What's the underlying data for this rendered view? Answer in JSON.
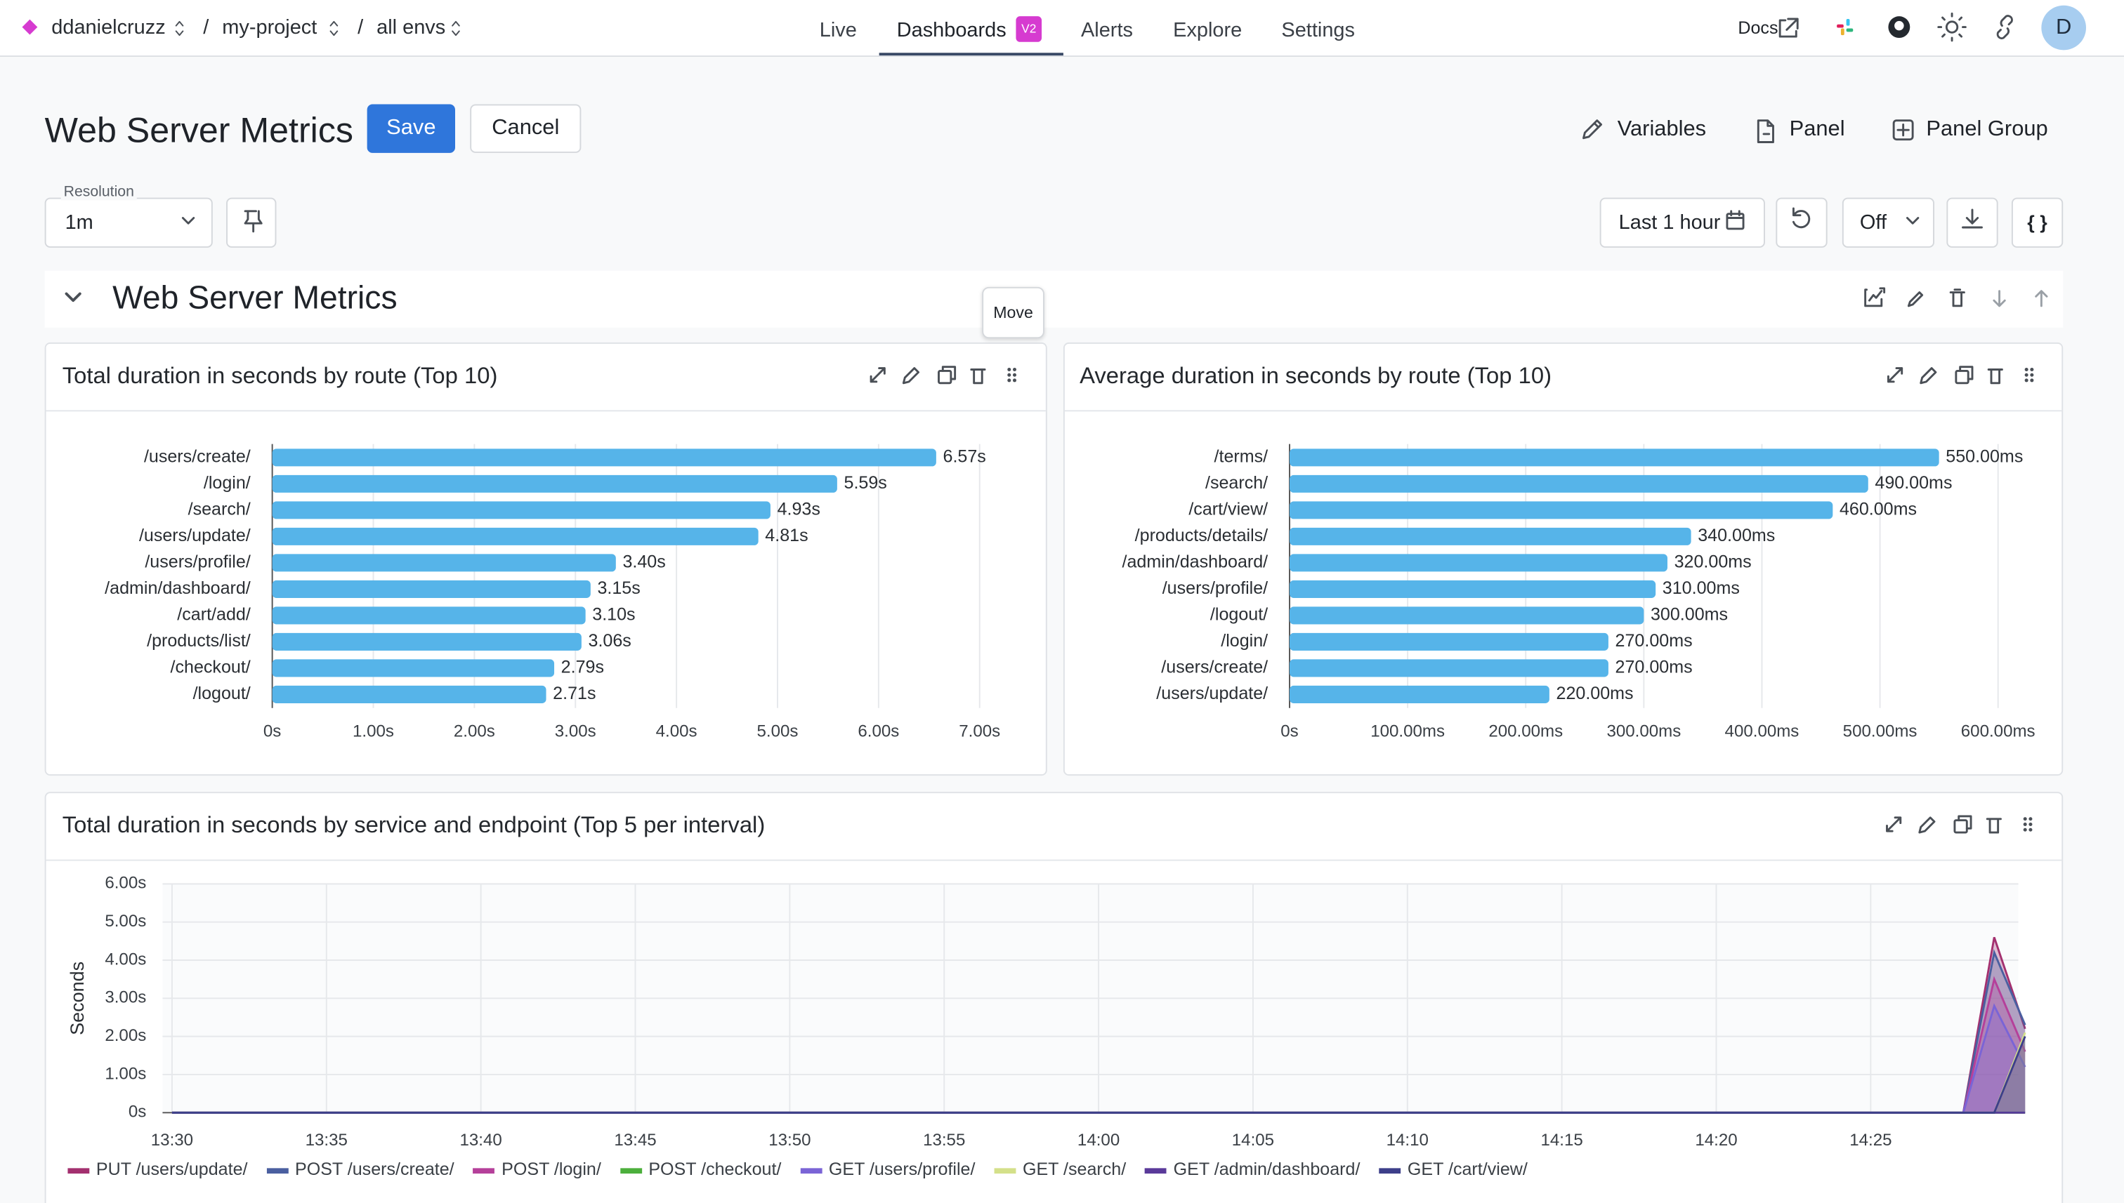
{
  "nav": {
    "org": "ddanielcruzz",
    "project": "my-project",
    "env": "all envs",
    "separator": "/",
    "tabs": [
      "Live",
      "Dashboards",
      "Alerts",
      "Explore",
      "Settings"
    ],
    "badge": "V2",
    "docs": "Docs",
    "avatar": "D"
  },
  "toolbar": {
    "title": "Web Server Metrics",
    "save": "Save",
    "cancel": "Cancel",
    "variables": "Variables",
    "panel": "Panel",
    "panel_group": "Panel Group",
    "resolution_label": "Resolution",
    "resolution": "1m",
    "time_range": "Last 1 hour",
    "refresh": "Off",
    "json": "{ }"
  },
  "group": {
    "title": "Web Server Metrics",
    "tooltip": "Move"
  },
  "panels": [
    {
      "title": "Total duration in seconds by route (Top 10)",
      "chart": {
        "type": "hbar",
        "color": "#56b4e9",
        "categories": [
          "/users/create/",
          "/login/",
          "/search/",
          "/users/update/",
          "/users/profile/",
          "/admin/dashboard/",
          "/cart/add/",
          "/products/list/",
          "/checkout/",
          "/logout/"
        ],
        "values": [
          6.57,
          5.59,
          4.93,
          4.81,
          3.4,
          3.15,
          3.1,
          3.06,
          2.79,
          2.71
        ],
        "value_labels": [
          "6.57s",
          "5.59s",
          "4.93s",
          "4.81s",
          "3.40s",
          "3.15s",
          "3.10s",
          "3.06s",
          "2.79s",
          "2.71s"
        ],
        "xlim": [
          0,
          7.5
        ],
        "xticks": [
          {
            "value": 0,
            "label": "0s"
          },
          {
            "value": 1,
            "label": "1.00s"
          },
          {
            "value": 2,
            "label": "2.00s"
          },
          {
            "value": 3,
            "label": "3.00s"
          },
          {
            "value": 4,
            "label": "4.00s"
          },
          {
            "value": 5,
            "label": "5.00s"
          },
          {
            "value": 6,
            "label": "6.00s"
          },
          {
            "value": 7,
            "label": "7.00s"
          }
        ],
        "grid": true
      }
    },
    {
      "title": "Average duration in seconds by route (Top 10)",
      "chart": {
        "type": "hbar",
        "color": "#56b4e9",
        "categories": [
          "/terms/",
          "/search/",
          "/cart/view/",
          "/products/details/",
          "/admin/dashboard/",
          "/users/profile/",
          "/logout/",
          "/login/",
          "/users/create/",
          "/users/update/"
        ],
        "values": [
          550,
          490,
          460,
          340,
          320,
          310,
          300,
          270,
          270,
          220
        ],
        "value_labels": [
          "550.00ms",
          "490.00ms",
          "460.00ms",
          "340.00ms",
          "320.00ms",
          "310.00ms",
          "300.00ms",
          "270.00ms",
          "270.00ms",
          "220.00ms"
        ],
        "xlim": [
          0,
          640
        ],
        "xticks": [
          {
            "value": 0,
            "label": "0s"
          },
          {
            "value": 100,
            "label": "100.00ms"
          },
          {
            "value": 200,
            "label": "200.00ms"
          },
          {
            "value": 300,
            "label": "300.00ms"
          },
          {
            "value": 400,
            "label": "400.00ms"
          },
          {
            "value": 500,
            "label": "500.00ms"
          },
          {
            "value": 600,
            "label": "600.00ms"
          }
        ],
        "grid": true
      }
    },
    {
      "title": "Total duration in seconds by service and endpoint (Top 5 per interval)",
      "chart": {
        "type": "area",
        "y_label": "Seconds",
        "x": [
          "13:30",
          "14:27",
          "14:28",
          "14:29",
          "14:30"
        ],
        "xlim": [
          "13:30",
          "14:30"
        ],
        "xticks": [
          "13:30",
          "13:35",
          "13:40",
          "13:45",
          "13:50",
          "13:55",
          "14:00",
          "14:05",
          "14:10",
          "14:15",
          "14:20",
          "14:25"
        ],
        "ylim": [
          0,
          6
        ],
        "yticks": [
          {
            "value": 0,
            "label": "0s"
          },
          {
            "value": 1,
            "label": "1.00s"
          },
          {
            "value": 2,
            "label": "2.00s"
          },
          {
            "value": 3,
            "label": "3.00s"
          },
          {
            "value": 4,
            "label": "4.00s"
          },
          {
            "value": 5,
            "label": "5.00s"
          },
          {
            "value": 6,
            "label": "6.00s"
          }
        ],
        "grid": true,
        "series": [
          {
            "name": "PUT /users/update/",
            "color": "#a3306f",
            "values": [
              0,
              0,
              0,
              4.6,
              2.2
            ]
          },
          {
            "name": "POST /users/create/",
            "color": "#4a5fa0",
            "values": [
              0,
              0,
              0,
              4.2,
              2.3
            ]
          },
          {
            "name": "POST /login/",
            "color": "#b5409a",
            "values": [
              0,
              0,
              0,
              3.5,
              1.6
            ]
          },
          {
            "name": "POST /checkout/",
            "color": "#4caf3c",
            "values": [
              0,
              0,
              0,
              0,
              0
            ]
          },
          {
            "name": "GET /users/profile/",
            "color": "#7a64d6",
            "values": [
              0,
              0,
              0,
              2.8,
              1.2
            ]
          },
          {
            "name": "GET /search/",
            "color": "#d4e08a",
            "values": [
              0,
              0,
              0,
              0,
              2.1
            ]
          },
          {
            "name": "GET /admin/dashboard/",
            "color": "#5a3a9a",
            "values": [
              0,
              0,
              0,
              0,
              0
            ]
          },
          {
            "name": "GET /cart/view/",
            "color": "#3d3f8a",
            "values": [
              0,
              0,
              0,
              0,
              2.0
            ]
          }
        ]
      }
    }
  ]
}
